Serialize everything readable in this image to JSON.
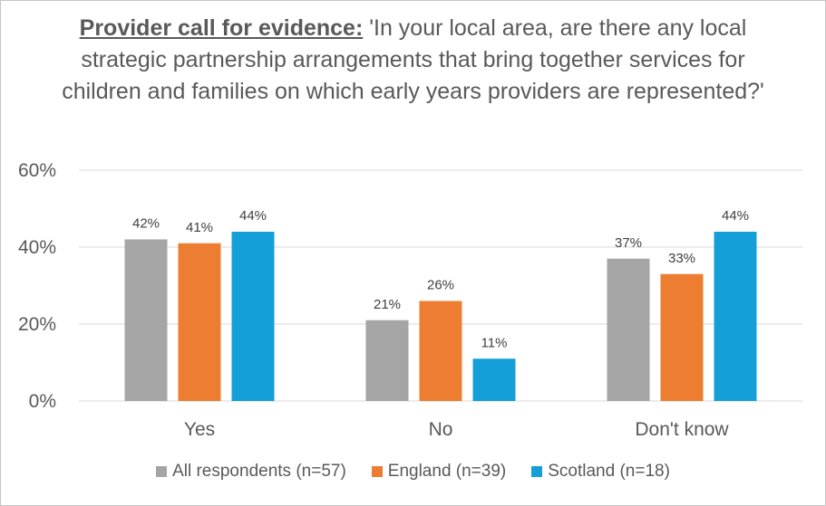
{
  "chart_data": {
    "type": "bar",
    "title_lead": "Provider call for evidence:",
    "title_rest": " 'In your local area, are there any local strategic partnership arrangements that bring together services for children and families on which early years providers are represented?'",
    "categories": [
      "Yes",
      "No",
      "Don't know"
    ],
    "series": [
      {
        "name": "All respondents (n=57)",
        "color": "#a5a5a5",
        "values": [
          42,
          21,
          37
        ]
      },
      {
        "name": "England (n=39)",
        "color": "#ed7d31",
        "values": [
          41,
          26,
          33
        ]
      },
      {
        "name": "Scotland (n=18)",
        "color": "#149fd9",
        "values": [
          44,
          11,
          44
        ]
      }
    ],
    "y_ticks": [
      0,
      20,
      40,
      60
    ],
    "y_tick_suffix": "%",
    "ylim": [
      0,
      60
    ],
    "value_suffix": "%",
    "xlabel": "",
    "ylabel": "",
    "grid": true,
    "legend_position": "bottom"
  }
}
